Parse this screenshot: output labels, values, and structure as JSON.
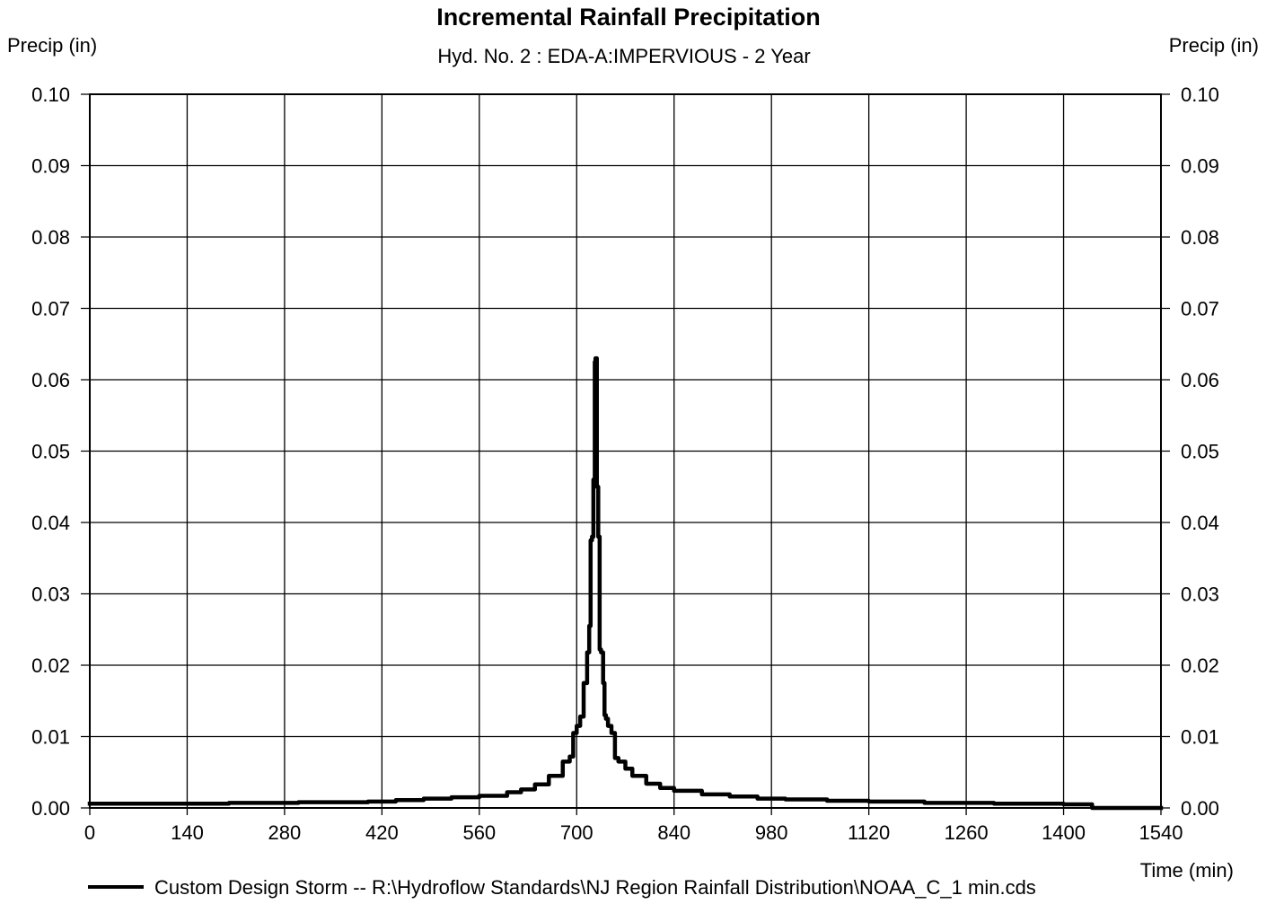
{
  "chart_data": {
    "type": "line",
    "title": "Incremental Rainfall Precipitation",
    "subtitle": "Hyd. No. 2 : EDA-A:IMPERVIOUS - 2 Year",
    "ylabel_left": "Precip (in)",
    "ylabel_right": "Precip (in)",
    "xlabel": "Time (min)",
    "xlim": [
      0,
      1540
    ],
    "ylim": [
      0,
      0.1
    ],
    "xticks": [
      "0",
      "140",
      "280",
      "420",
      "560",
      "700",
      "840",
      "980",
      "1120",
      "1260",
      "1400",
      "1540"
    ],
    "yticks": [
      "0.00",
      "0.01",
      "0.02",
      "0.03",
      "0.04",
      "0.05",
      "0.06",
      "0.07",
      "0.08",
      "0.09",
      "0.10"
    ],
    "grid": true,
    "legend_position": "bottom",
    "series": [
      {
        "name": "Custom Design Storm -- R:\\Hydroflow Standards\\NJ Region Rainfall Distribution\\NOAA_C_1 min.cds",
        "color": "#000000",
        "x": [
          0,
          100,
          200,
          300,
          400,
          440,
          480,
          520,
          560,
          600,
          620,
          640,
          660,
          680,
          690,
          695,
          700,
          705,
          710,
          715,
          718,
          720,
          722,
          724,
          726,
          727,
          729,
          731,
          733,
          735,
          738,
          740,
          742,
          745,
          750,
          755,
          760,
          770,
          780,
          800,
          820,
          840,
          880,
          920,
          960,
          1000,
          1060,
          1120,
          1200,
          1300,
          1400,
          1440,
          1441,
          1540
        ],
        "y": [
          0.0006,
          0.0006,
          0.0007,
          0.0008,
          0.0009,
          0.0011,
          0.0013,
          0.0015,
          0.0017,
          0.0022,
          0.0026,
          0.0033,
          0.0045,
          0.0065,
          0.0072,
          0.0105,
          0.0115,
          0.0128,
          0.0175,
          0.0218,
          0.0255,
          0.0375,
          0.038,
          0.046,
          0.0625,
          0.063,
          0.045,
          0.038,
          0.0222,
          0.0218,
          0.0175,
          0.013,
          0.0125,
          0.0115,
          0.0105,
          0.007,
          0.0065,
          0.0055,
          0.0045,
          0.0034,
          0.0028,
          0.0024,
          0.0019,
          0.0016,
          0.0013,
          0.0012,
          0.001,
          0.0009,
          0.0007,
          0.0006,
          0.0005,
          0.0005,
          0.0,
          0.0
        ]
      }
    ]
  }
}
